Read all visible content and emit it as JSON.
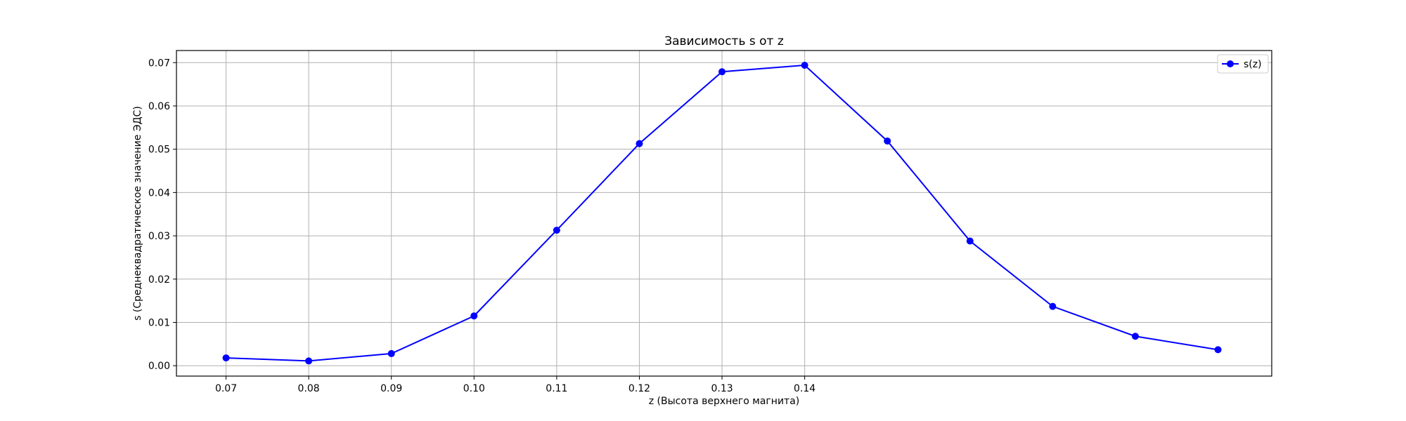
{
  "chart_data": {
    "type": "line",
    "title": "Зависимость s от z",
    "xlabel": "z (Высота верхнего магнита)",
    "ylabel": "s (Среднеквадратическое значение ЭДС)",
    "x_ticks": [
      "0.07",
      "0.08",
      "0.09",
      "0.10",
      "0.11",
      "0.12",
      "0.13",
      "0.14"
    ],
    "y_ticks": [
      "0.00",
      "0.01",
      "0.02",
      "0.03",
      "0.04",
      "0.05",
      "0.06",
      "0.07"
    ],
    "xlim": [
      0.064,
      0.1965
    ],
    "ylim": [
      -0.0024,
      0.0728
    ],
    "grid": true,
    "legend_position": "upper right",
    "series": [
      {
        "name": "s(z)",
        "color": "#0000ff",
        "marker": "circle",
        "x": [
          0.07,
          0.08,
          0.09,
          0.1,
          0.11,
          0.12,
          0.13,
          0.14,
          0.15,
          0.16,
          0.17,
          0.18,
          0.19
        ],
        "y": [
          0.0018,
          0.0011,
          0.0028,
          0.0115,
          0.0313,
          0.0513,
          0.0679,
          0.0694,
          0.0519,
          0.0288,
          0.0137,
          0.0068,
          0.0037
        ]
      }
    ]
  }
}
